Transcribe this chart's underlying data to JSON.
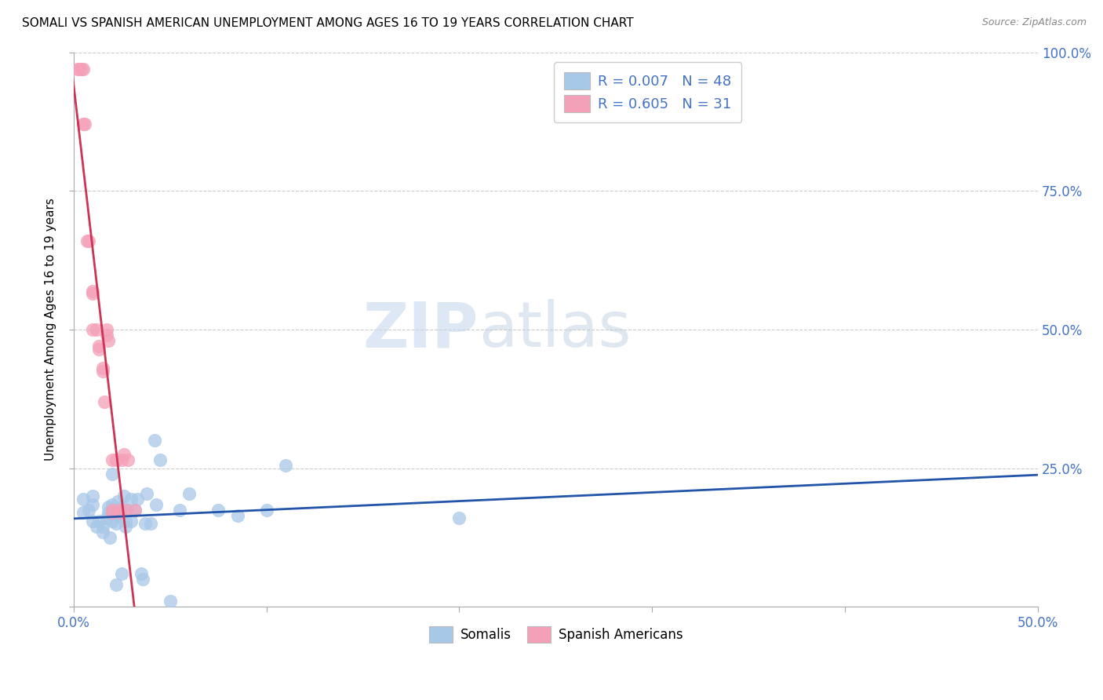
{
  "title": "SOMALI VS SPANISH AMERICAN UNEMPLOYMENT AMONG AGES 16 TO 19 YEARS CORRELATION CHART",
  "source": "Source: ZipAtlas.com",
  "ylabel": "Unemployment Among Ages 16 to 19 years",
  "xlim": [
    0,
    0.5
  ],
  "ylim": [
    0,
    1.0
  ],
  "somali_color": "#a8c8e8",
  "spanish_color": "#f4a0b8",
  "somali_line_color": "#2255aa",
  "spanish_line_color": "#cc3355",
  "legend_r_somali": "R = 0.007",
  "legend_n_somali": "N = 48",
  "legend_r_spanish": "R = 0.605",
  "legend_n_spanish": "N = 31",
  "legend_color": "#4472c4",
  "watermark_zip": "ZIP",
  "watermark_atlas": "atlas",
  "watermark_color": "#d0dff0",
  "somali_x": [
    0.005,
    0.005,
    0.008,
    0.01,
    0.01,
    0.01,
    0.012,
    0.013,
    0.015,
    0.015,
    0.017,
    0.018,
    0.018,
    0.019,
    0.02,
    0.02,
    0.02,
    0.02,
    0.022,
    0.022,
    0.023,
    0.023,
    0.025,
    0.025,
    0.026,
    0.027,
    0.027,
    0.028,
    0.03,
    0.03,
    0.032,
    0.033,
    0.035,
    0.036,
    0.037,
    0.038,
    0.04,
    0.042,
    0.043,
    0.045,
    0.05,
    0.055,
    0.06,
    0.075,
    0.085,
    0.1,
    0.11,
    0.2
  ],
  "somali_y": [
    0.17,
    0.195,
    0.175,
    0.155,
    0.185,
    0.2,
    0.145,
    0.155,
    0.135,
    0.145,
    0.16,
    0.17,
    0.18,
    0.125,
    0.155,
    0.17,
    0.185,
    0.24,
    0.04,
    0.15,
    0.165,
    0.19,
    0.06,
    0.18,
    0.2,
    0.145,
    0.155,
    0.175,
    0.155,
    0.195,
    0.175,
    0.195,
    0.06,
    0.05,
    0.15,
    0.205,
    0.15,
    0.3,
    0.185,
    0.265,
    0.01,
    0.175,
    0.205,
    0.175,
    0.165,
    0.175,
    0.255,
    0.16
  ],
  "spanish_x": [
    0.002,
    0.003,
    0.004,
    0.005,
    0.005,
    0.006,
    0.007,
    0.008,
    0.01,
    0.01,
    0.01,
    0.012,
    0.013,
    0.013,
    0.015,
    0.015,
    0.016,
    0.017,
    0.017,
    0.018,
    0.02,
    0.02,
    0.02,
    0.022,
    0.023,
    0.024,
    0.025,
    0.026,
    0.027,
    0.028,
    0.032
  ],
  "spanish_y": [
    0.97,
    0.97,
    0.97,
    0.97,
    0.87,
    0.87,
    0.66,
    0.66,
    0.57,
    0.565,
    0.5,
    0.5,
    0.47,
    0.465,
    0.43,
    0.425,
    0.37,
    0.49,
    0.5,
    0.48,
    0.265,
    0.175,
    0.17,
    0.265,
    0.175,
    0.17,
    0.265,
    0.275,
    0.175,
    0.265,
    0.175
  ]
}
